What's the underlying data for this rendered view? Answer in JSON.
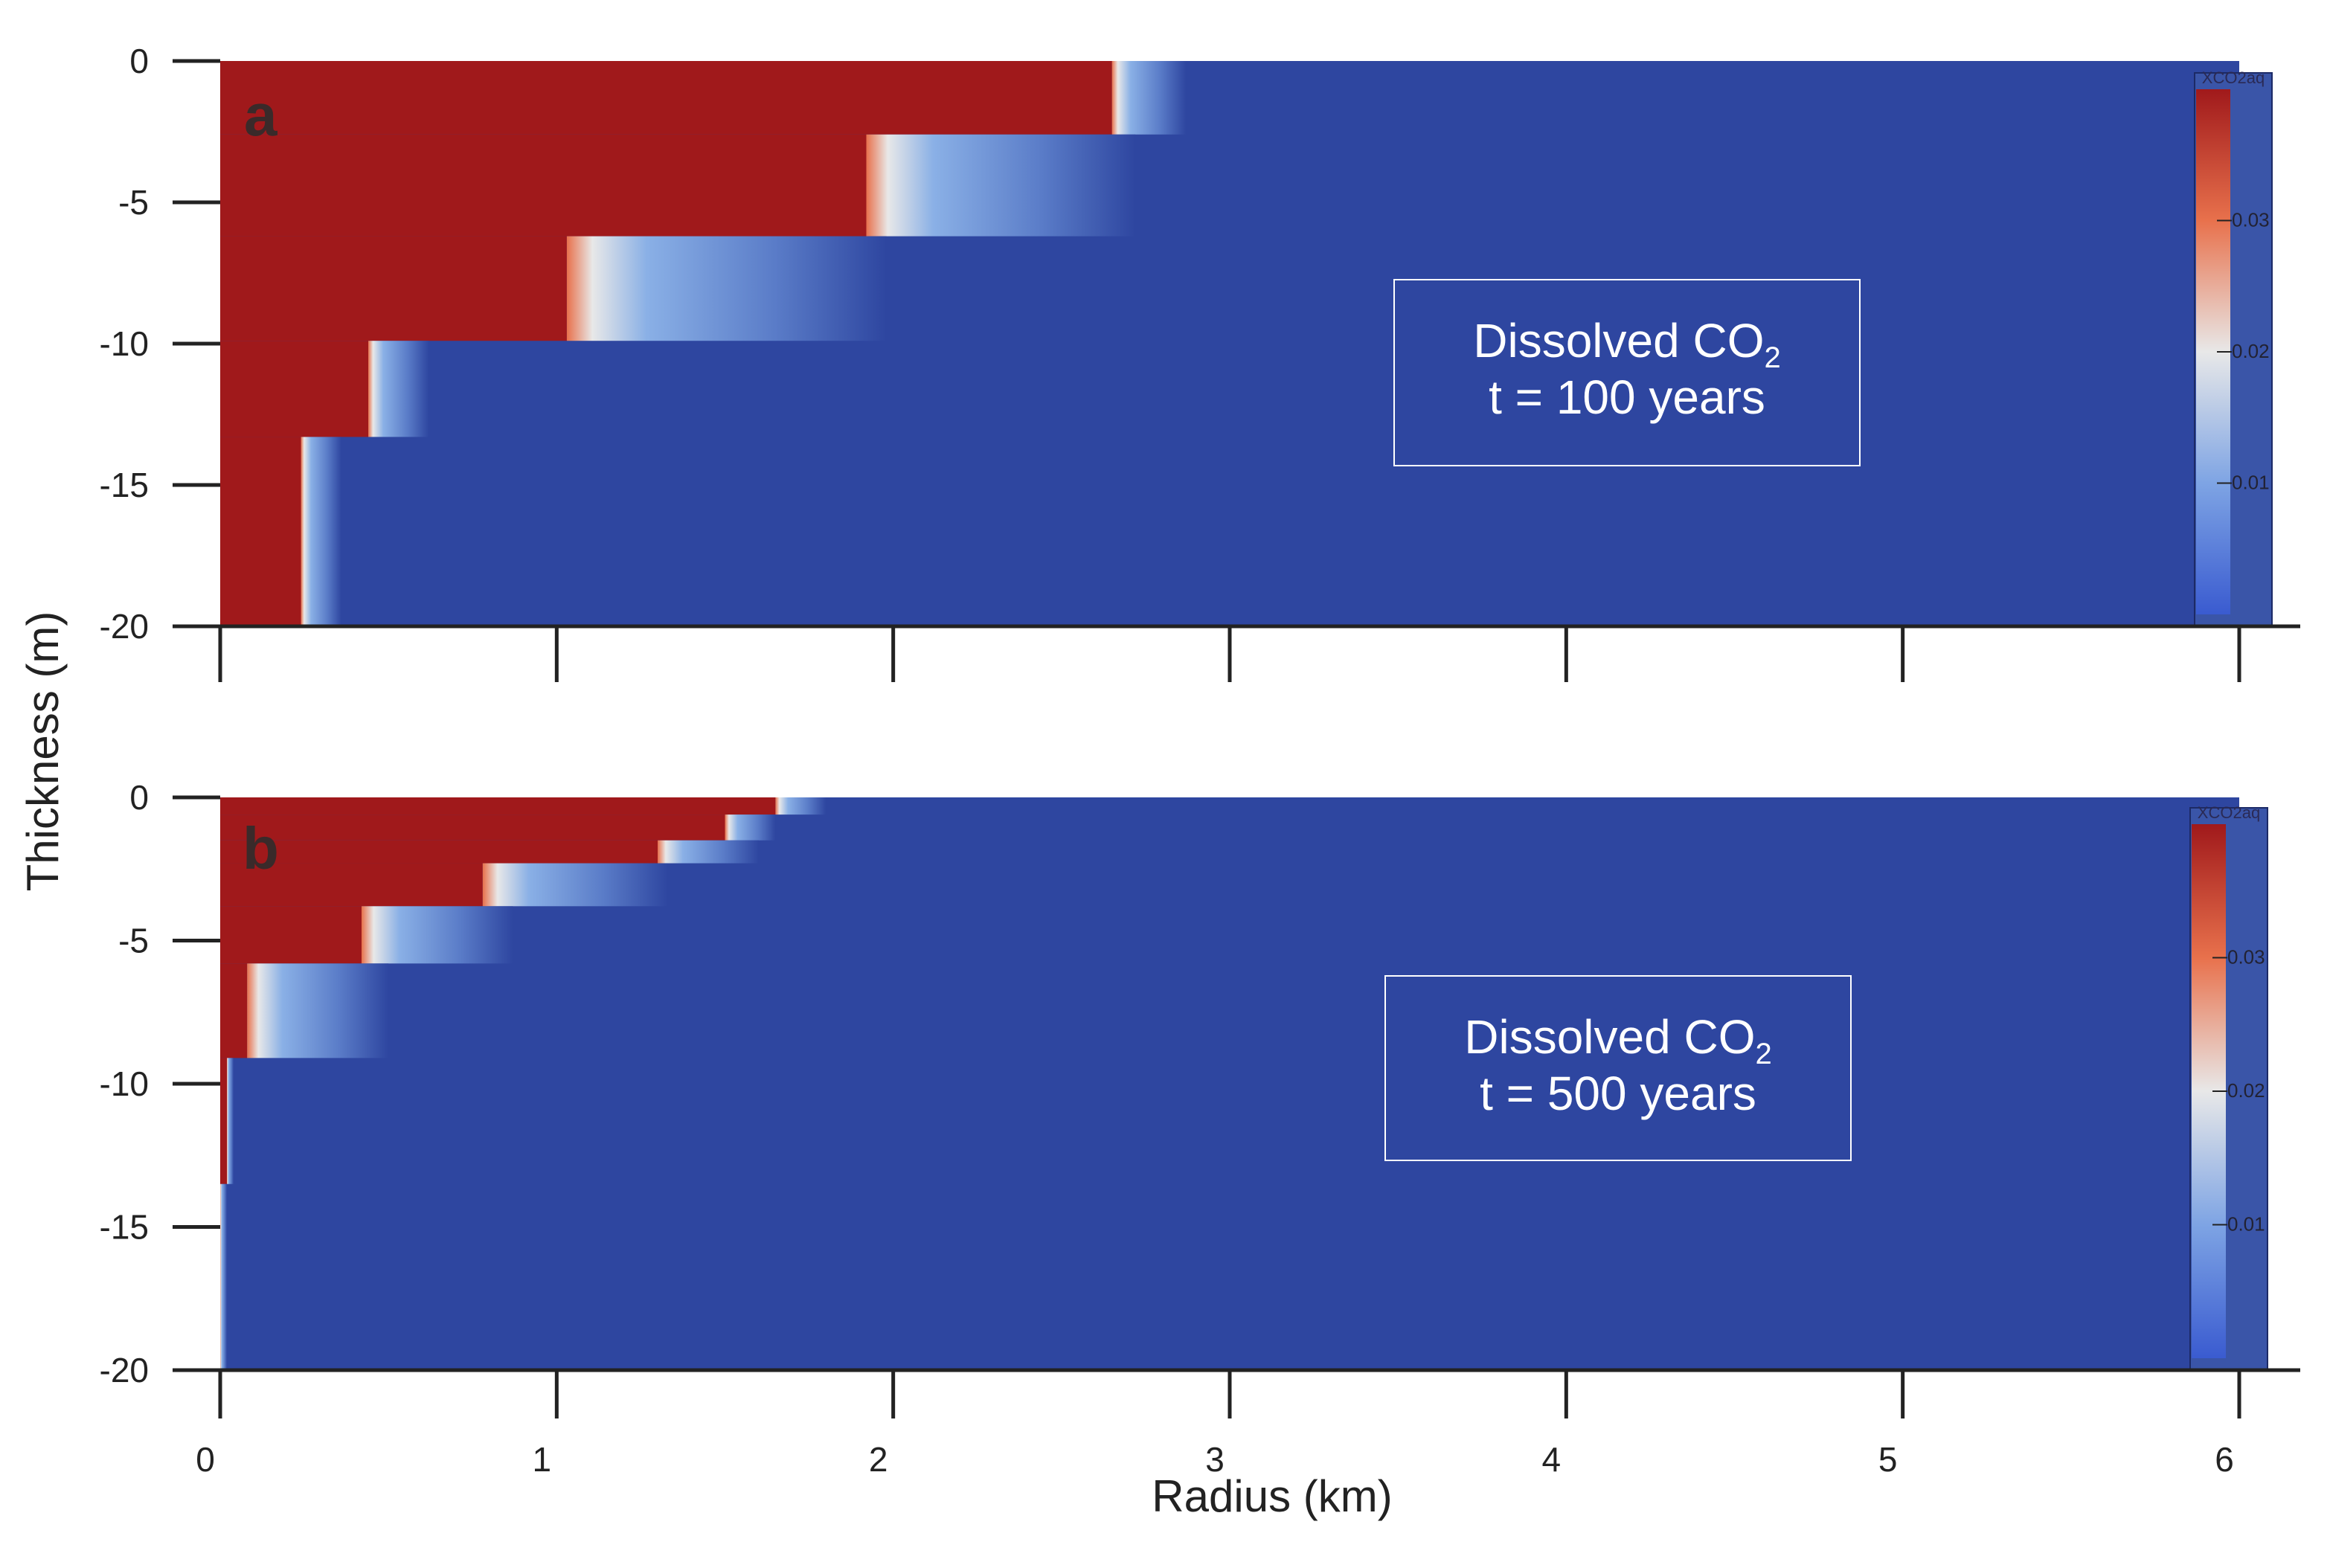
{
  "chart_data": [
    {
      "type": "heatmap",
      "panel_label": "a",
      "annotation": {
        "line1": "Dissolved CO",
        "subscript": "2",
        "line2": "t = 100 years"
      },
      "colorbar": {
        "title": "XCO2aq",
        "ticks": [
          0.01,
          0.02,
          0.03
        ],
        "tick_labels": [
          "0.01",
          "0.02",
          "0.03"
        ],
        "range": [
          0,
          0.04
        ]
      },
      "x_range_km": [
        0,
        6
      ],
      "y_range_m": [
        -20,
        0
      ],
      "y_ticks": [
        0,
        -5,
        -10,
        -15,
        -20
      ],
      "y_tick_labels": [
        "0",
        "-5",
        "-10",
        "-15",
        "-20"
      ],
      "x_ticks": [
        0,
        1,
        2,
        3,
        4,
        5,
        6
      ],
      "background_value": 0.0,
      "red_region_value": 0.04,
      "layers": [
        {
          "z_top": 0,
          "z_bottom": -2.6,
          "front_km": 2.65,
          "fade_km": 0.22
        },
        {
          "z_top": -2.6,
          "z_bottom": -6.2,
          "front_km": 1.92,
          "fade_km": 0.8
        },
        {
          "z_top": -6.2,
          "z_bottom": -9.9,
          "front_km": 1.03,
          "fade_km": 0.95
        },
        {
          "z_top": -9.9,
          "z_bottom": -13.3,
          "front_km": 0.44,
          "fade_km": 0.18
        },
        {
          "z_top": -13.3,
          "z_bottom": -20,
          "front_km": 0.24,
          "fade_km": 0.12
        }
      ]
    },
    {
      "type": "heatmap",
      "panel_label": "b",
      "annotation": {
        "line1": "Dissolved CO",
        "subscript": "2",
        "line2": "t = 500 years"
      },
      "colorbar": {
        "title": "XCO2aq",
        "ticks": [
          0.01,
          0.02,
          0.03
        ],
        "tick_labels": [
          "0.01",
          "0.02",
          "0.03"
        ],
        "range": [
          0,
          0.04
        ]
      },
      "x_range_km": [
        0,
        6
      ],
      "y_range_m": [
        -20,
        0
      ],
      "y_ticks": [
        0,
        -5,
        -10,
        -15,
        -20
      ],
      "y_tick_labels": [
        "0",
        "-5",
        "-10",
        "-15",
        "-20"
      ],
      "x_ticks": [
        0,
        1,
        2,
        3,
        4,
        5,
        6
      ],
      "x_tick_labels": [
        "0",
        "1",
        "2",
        "3",
        "4",
        "5",
        "6"
      ],
      "background_value": 0.0,
      "red_region_value": 0.04,
      "layers": [
        {
          "z_top": 0,
          "z_bottom": -0.6,
          "front_km": 1.65,
          "fade_km": 0.15
        },
        {
          "z_top": -0.6,
          "z_bottom": -1.5,
          "front_km": 1.5,
          "fade_km": 0.15
        },
        {
          "z_top": -1.5,
          "z_bottom": -2.3,
          "front_km": 1.3,
          "fade_km": 0.3
        },
        {
          "z_top": -2.3,
          "z_bottom": -3.8,
          "front_km": 0.78,
          "fade_km": 0.55
        },
        {
          "z_top": -3.8,
          "z_bottom": -5.8,
          "front_km": 0.42,
          "fade_km": 0.45
        },
        {
          "z_top": -5.8,
          "z_bottom": -9.1,
          "front_km": 0.08,
          "fade_km": 0.42
        },
        {
          "z_top": -9.1,
          "z_bottom": -13.5,
          "front_km": 0.02,
          "fade_km": 0.02
        },
        {
          "z_top": -13.5,
          "z_bottom": -20,
          "front_km": 0.0,
          "fade_km": 0.02
        }
      ]
    }
  ],
  "axes": {
    "xlabel": "Radius (km)",
    "ylabel": "Thickness (m)"
  },
  "colors": {
    "red": "#a0191b",
    "blue": "#2e46a0",
    "colorbar_blue": "#3a55a8",
    "white_mid": "#e8e8e8",
    "orange": "#e8714c",
    "light_blue": "#8ab0e6",
    "axis": "#222222"
  }
}
